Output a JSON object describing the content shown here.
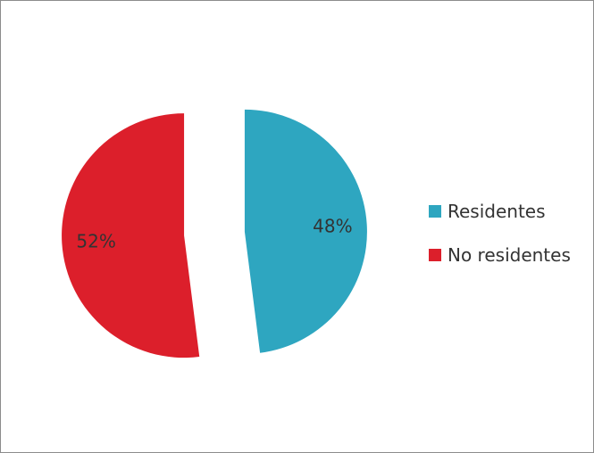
{
  "chart_data": {
    "type": "pie",
    "exploded": true,
    "slices": [
      {
        "label": "Residentes",
        "value": 48,
        "display": "48%",
        "color": "#2ea6c0"
      },
      {
        "label": "No residentes",
        "value": 52,
        "display": "52%",
        "color": "#dc1f2b"
      }
    ],
    "legend": {
      "position": "right",
      "items": [
        "Residentes",
        "No residentes"
      ]
    },
    "data_labels": [
      "48%",
      "52%"
    ]
  }
}
